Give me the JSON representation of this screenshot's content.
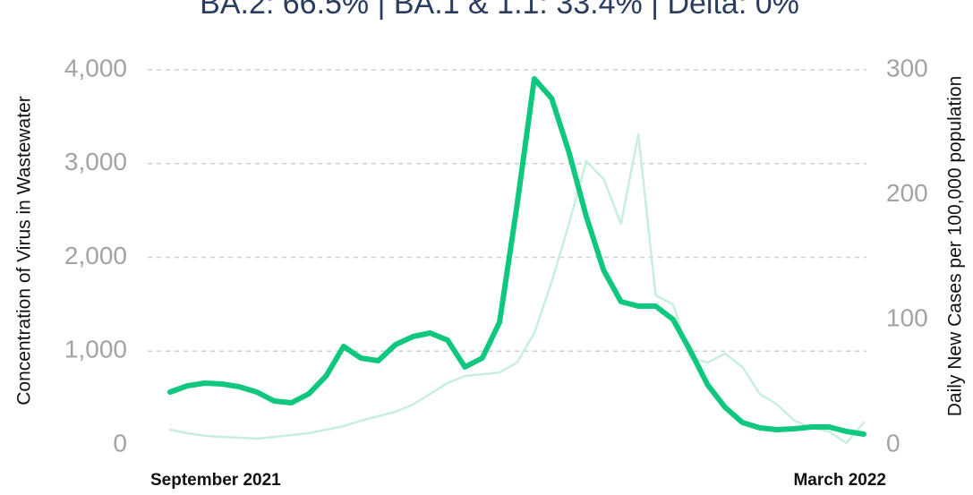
{
  "chart_data": {
    "type": "line",
    "title": "BA.2: 66.5% | BA.1 & 1.1: 33.4% | Delta: 0%",
    "y_label": "Concentration of Virus in Wastewater",
    "y2_label": "Daily New Cases per 100,000 population",
    "categories": [
      "September 2021",
      null,
      null,
      null,
      null,
      null,
      null,
      null,
      null,
      null,
      null,
      null,
      null,
      null,
      null,
      null,
      null,
      null,
      null,
      null,
      null,
      null,
      null,
      null,
      null,
      null,
      null,
      null,
      null,
      null,
      null,
      null,
      null,
      null,
      null,
      null,
      null,
      null,
      null,
      null,
      "March 2022"
    ],
    "series": [
      {
        "name": "Daily New Cases per 100,000 population",
        "color": "#c8efdc",
        "axis": "y2",
        "values": [
          12.2,
          9.3,
          7.2,
          6.4,
          5.7,
          5.0,
          6.4,
          7.9,
          9.3,
          12.2,
          15.0,
          19.3,
          22.9,
          26.5,
          32.2,
          40.8,
          49.4,
          55.1,
          56.5,
          57.9,
          65.8,
          89.5,
          130.3,
          176.8,
          227.0,
          212.6,
          176.8,
          248.4,
          119.6,
          112.4,
          69.4,
          65.8,
          73.0,
          62.3,
          40.8,
          32.2,
          19.3,
          13.6,
          10.7,
          1.4,
          17.9
        ]
      },
      {
        "name": "Concentration of Virus in Wastewater",
        "color": "#10c77f",
        "values": [
          563,
          630,
          659,
          649,
          620,
          563,
          468,
          449,
          544,
          735,
          1050,
          926,
          897,
          1069,
          1155,
          1193,
          1117,
          831,
          926,
          1308,
          2549,
          3905,
          3695,
          3122,
          2434,
          1862,
          1527,
          1480,
          1480,
          1337,
          1002,
          640,
          401,
          239,
          181,
          162,
          172,
          191,
          191,
          143,
          115
        ]
      }
    ],
    "ylim": [
      0,
      4000
    ],
    "yticks": [
      0,
      {
        "value": 1000,
        "label": "1,000"
      },
      {
        "value": 2000,
        "label": "2,000"
      },
      {
        "value": 3000,
        "label": "3,000"
      },
      {
        "value": 4000,
        "label": "4,000"
      }
    ],
    "y2lim": [
      0,
      300
    ],
    "y2ticks": [
      0,
      100,
      200,
      300
    ],
    "grid": true
  }
}
